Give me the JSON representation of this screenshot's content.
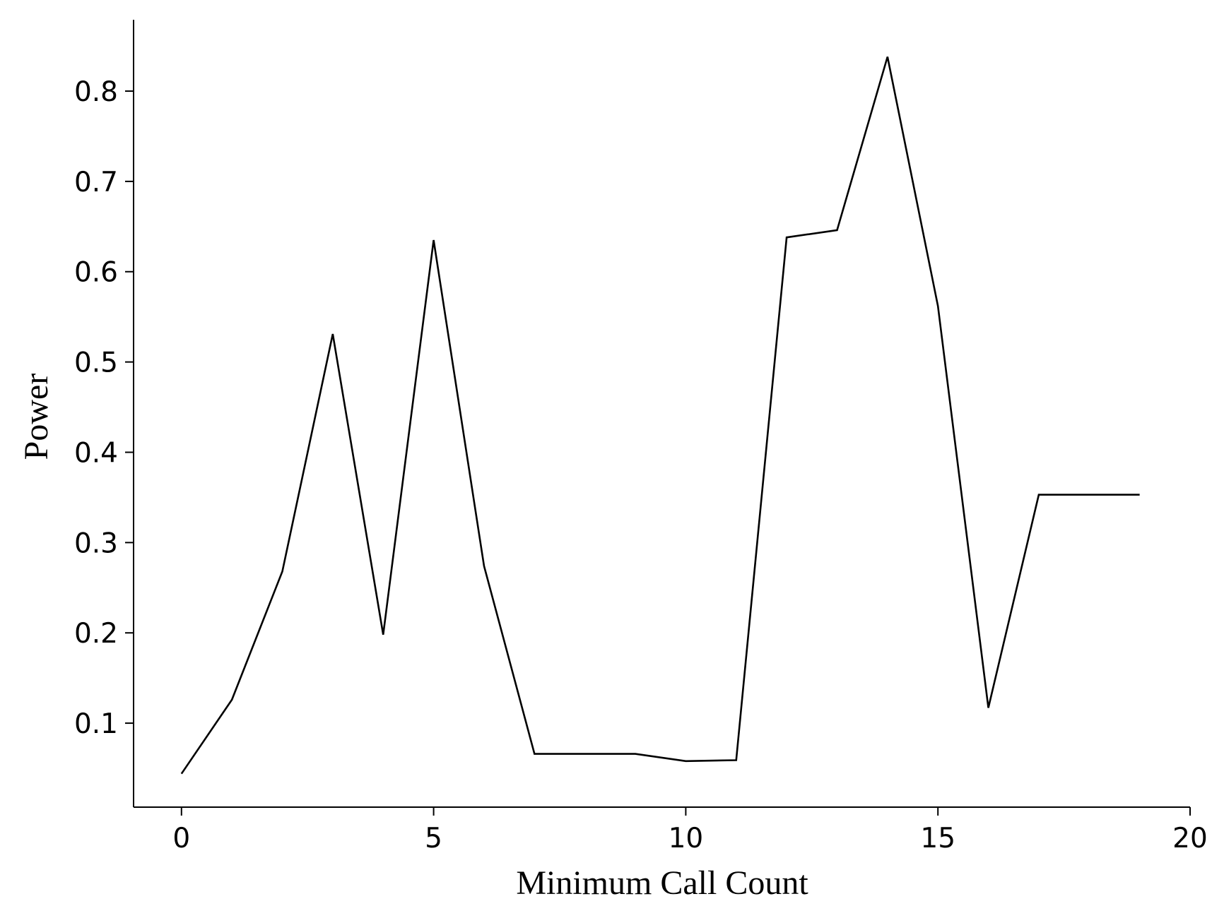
{
  "chart_data": {
    "type": "line",
    "title": "",
    "xlabel": "Minimum Call Count",
    "ylabel": "Power",
    "xlim": [
      -0.95,
      20
    ],
    "ylim": [
      0.007,
      0.879
    ],
    "xticks": [
      0,
      5,
      10,
      15,
      20
    ],
    "yticks": [
      0.1,
      0.2,
      0.3,
      0.4,
      0.5,
      0.6,
      0.7,
      0.8
    ],
    "grid": false,
    "legend": "none",
    "series": [
      {
        "color": "#000000",
        "x": [
          0,
          1,
          2,
          3,
          4,
          5,
          6,
          7,
          8,
          9,
          10,
          11,
          12,
          13,
          14,
          15,
          16,
          17,
          18,
          19
        ],
        "y": [
          0.044,
          0.126,
          0.268,
          0.531,
          0.198,
          0.635,
          0.274,
          0.066,
          0.066,
          0.066,
          0.058,
          0.059,
          0.638,
          0.646,
          0.838,
          0.562,
          0.117,
          0.353,
          0.353,
          0.353
        ]
      }
    ]
  }
}
